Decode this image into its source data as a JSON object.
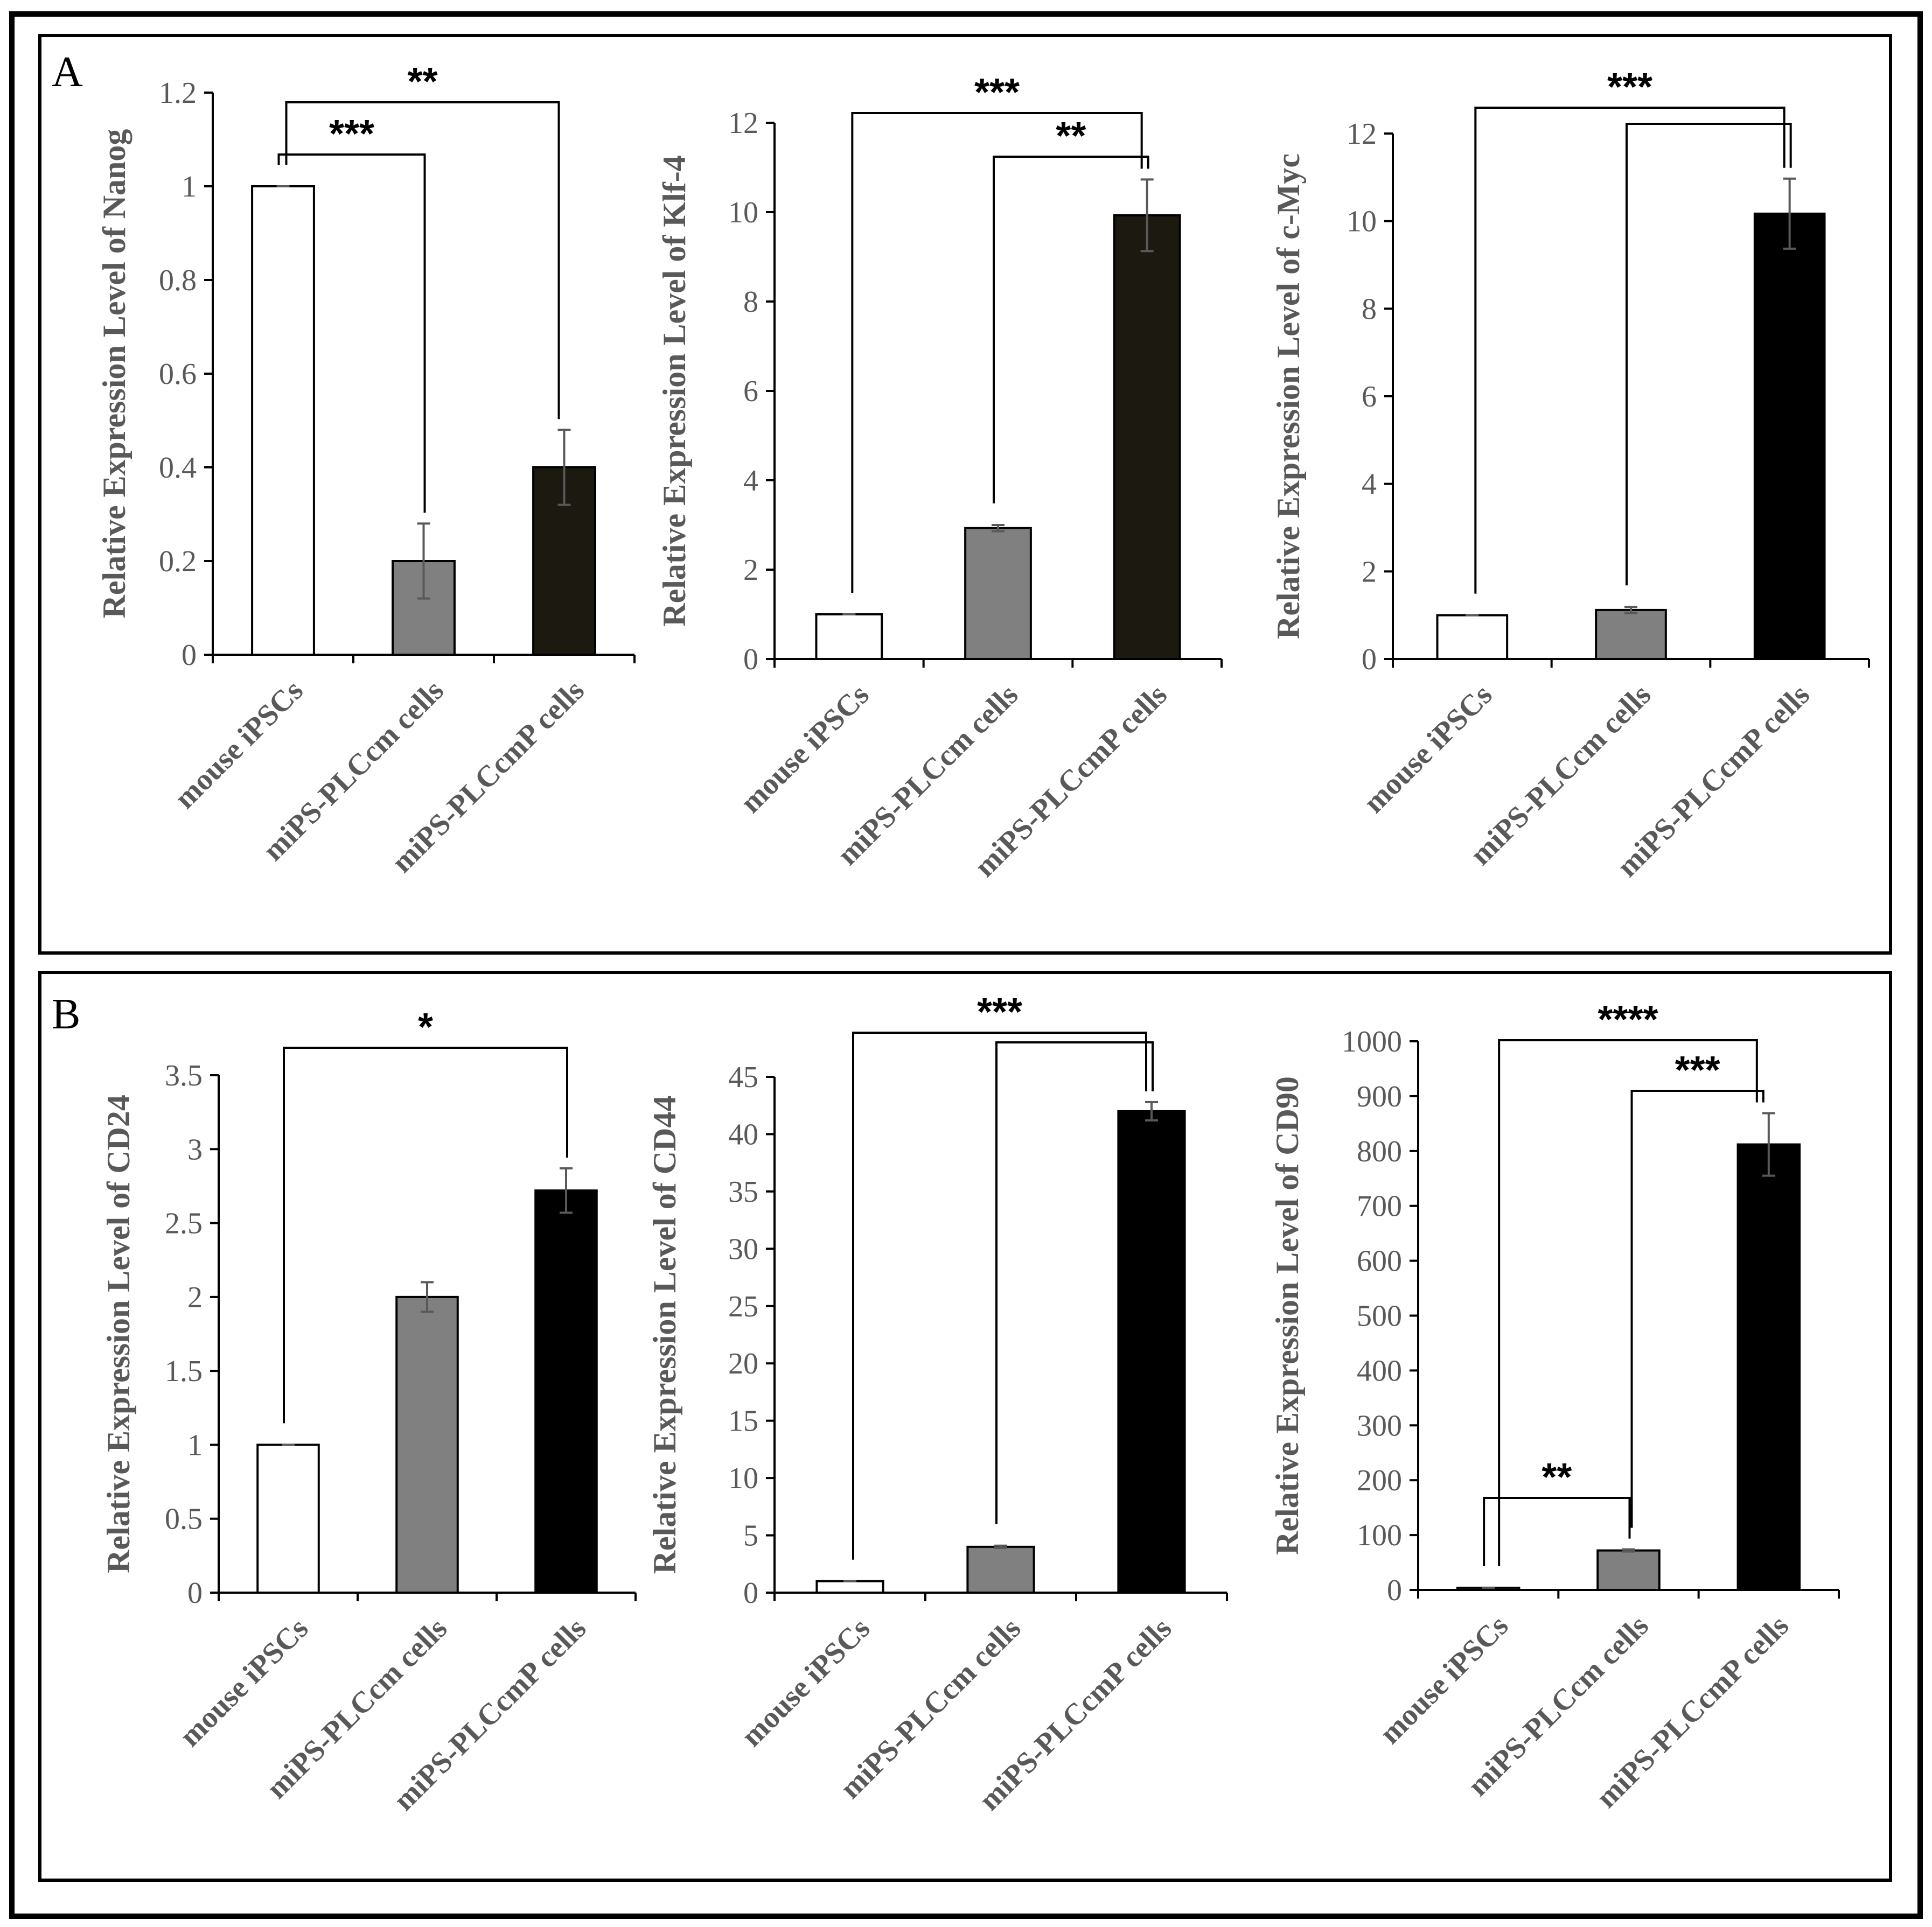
{
  "categories": [
    "mouse iPSCs",
    "miPS-PLCcm cells",
    "miPS-PLCcmP cells"
  ],
  "panels": [
    {
      "label": "A"
    },
    {
      "label": "B"
    }
  ],
  "chart_data": [
    {
      "type": "bar",
      "panel": "A",
      "title": "",
      "ylabel": "Relative Expression Level of Nanog",
      "xlabel": "",
      "categories": [
        "mouse iPSCs",
        "miPS-PLCcm cells",
        "miPS-PLCcmP cells"
      ],
      "values": [
        1,
        0.2,
        0.4
      ],
      "errors": [
        0,
        0.08,
        0.08
      ],
      "colors": [
        "#ffffff",
        "#808080",
        "#1c1a10"
      ],
      "ylim": [
        0,
        1.2
      ],
      "yticks": [
        0,
        0.2,
        0.4,
        0.6,
        0.8,
        1,
        1.2
      ],
      "ytick_labels": [
        "0",
        "0.2",
        "0.4",
        "0.6",
        "0.8",
        "1",
        "1.2"
      ],
      "significance": [
        {
          "from": 0,
          "to": 1,
          "label": "***"
        },
        {
          "from": 0,
          "to": 2,
          "label": "**"
        }
      ]
    },
    {
      "type": "bar",
      "panel": "A",
      "title": "",
      "ylabel": "Relative Expression Level of  Klf-4",
      "xlabel": "",
      "categories": [
        "mouse iPSCs",
        "miPS-PLCcm cells",
        "miPS-PLCcmP cells"
      ],
      "values": [
        1,
        2.93,
        9.93
      ],
      "errors": [
        0,
        0.07,
        0.8
      ],
      "colors": [
        "#ffffff",
        "#808080",
        "#1c1a10"
      ],
      "ylim": [
        0,
        12
      ],
      "yticks": [
        0,
        2,
        4,
        6,
        8,
        10,
        12
      ],
      "ytick_labels": [
        "0",
        "2",
        "4",
        "6",
        "8",
        "10",
        "12"
      ],
      "significance": [
        {
          "from": 1,
          "to": 2,
          "label": "**"
        },
        {
          "from": 0,
          "to": 2,
          "label": "***"
        }
      ]
    },
    {
      "type": "bar",
      "panel": "A",
      "title": "",
      "ylabel": "Relative Expression Level of c-Myc",
      "xlabel": "",
      "categories": [
        "mouse iPSCs",
        "miPS-PLCcm cells",
        "miPS-PLCcmP cells"
      ],
      "values": [
        1,
        1.12,
        10.17
      ],
      "errors": [
        0,
        0.07,
        0.8
      ],
      "colors": [
        "#ffffff",
        "#808080",
        "#000000"
      ],
      "ylim": [
        0,
        12
      ],
      "yticks": [
        0,
        2,
        4,
        6,
        8,
        10,
        12
      ],
      "ytick_labels": [
        "0",
        "2",
        "4",
        "6",
        "8",
        "10",
        "12"
      ],
      "significance": [
        {
          "from": 1,
          "to": 2,
          "label": ""
        },
        {
          "from": 0,
          "to": 2,
          "label": "***"
        }
      ]
    },
    {
      "type": "bar",
      "panel": "B",
      "title": "",
      "ylabel": "Relative Expression Level of CD24",
      "xlabel": "",
      "categories": [
        "mouse iPSCs",
        "miPS-PLCcm cells",
        "miPS-PLCcmP cells"
      ],
      "values": [
        1,
        2,
        2.72
      ],
      "errors": [
        0,
        0.1,
        0.15
      ],
      "colors": [
        "#ffffff",
        "#808080",
        "#000000"
      ],
      "ylim": [
        0,
        3.5
      ],
      "yticks": [
        0,
        0.5,
        1,
        1.5,
        2,
        2.5,
        3,
        3.5
      ],
      "ytick_labels": [
        "0",
        "0.5",
        "1",
        "1.5",
        "2",
        "2.5",
        "3",
        "3.5"
      ],
      "significance": [
        {
          "from": 0,
          "to": 2,
          "label": "*"
        }
      ]
    },
    {
      "type": "bar",
      "panel": "B",
      "title": "",
      "ylabel": "Relative Expression Level of CD44",
      "xlabel": "",
      "categories": [
        "mouse iPSCs",
        "miPS-PLCcm cells",
        "miPS-PLCcmP cells"
      ],
      "values": [
        1,
        4,
        42
      ],
      "errors": [
        0,
        0.1,
        0.8
      ],
      "colors": [
        "#ffffff",
        "#808080",
        "#000000"
      ],
      "ylim": [
        0,
        45
      ],
      "yticks": [
        0,
        5,
        10,
        15,
        20,
        25,
        30,
        35,
        40,
        45
      ],
      "ytick_labels": [
        "0",
        "5",
        "10",
        "15",
        "20",
        "25",
        "30",
        "35",
        "40",
        "45"
      ],
      "significance": [
        {
          "from": 1,
          "to": 2,
          "label": ""
        },
        {
          "from": 0,
          "to": 2,
          "label": "***"
        }
      ]
    },
    {
      "type": "bar",
      "panel": "B",
      "title": "",
      "ylabel": "Relative Expression Level of CD90",
      "xlabel": "",
      "categories": [
        "mouse iPSCs",
        "miPS-PLCcm cells",
        "miPS-PLCcmP cells"
      ],
      "values": [
        4,
        72,
        812
      ],
      "errors": [
        0,
        2,
        57
      ],
      "colors": [
        "#ffffff",
        "#808080",
        "#000000"
      ],
      "ylim": [
        0,
        1000
      ],
      "yticks": [
        0,
        100,
        200,
        300,
        400,
        500,
        600,
        700,
        800,
        900,
        1000
      ],
      "ytick_labels": [
        "0",
        "100",
        "200",
        "300",
        "400",
        "500",
        "600",
        "700",
        "800",
        "900",
        "1000"
      ],
      "significance": [
        {
          "from": 0,
          "to": 1,
          "label": "**"
        },
        {
          "from": 1,
          "to": 2,
          "label": "***"
        },
        {
          "from": 0,
          "to": 2,
          "label": "****"
        }
      ]
    }
  ]
}
